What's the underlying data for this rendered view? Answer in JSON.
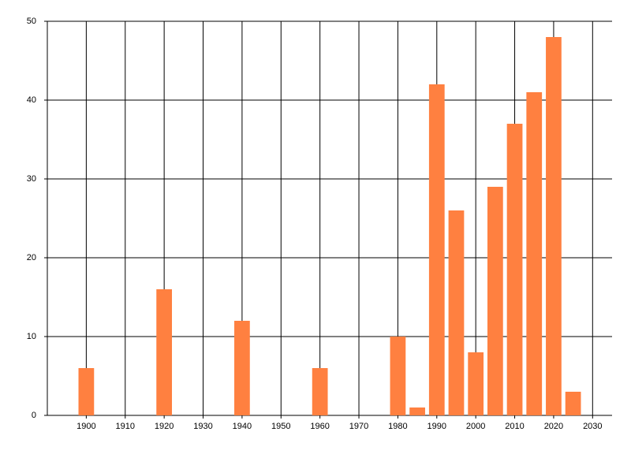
{
  "chart_data": {
    "type": "bar",
    "x": [
      1900,
      1920,
      1940,
      1960,
      1980,
      1985,
      1990,
      1995,
      2000,
      2005,
      2010,
      2015,
      2020,
      2025
    ],
    "values": [
      6,
      16,
      12,
      6,
      10,
      1,
      42,
      26,
      8,
      29,
      37,
      41,
      48,
      3
    ],
    "color": "#ff8040",
    "xlim": [
      1890,
      2035
    ],
    "xticks": [
      1900,
      1910,
      1920,
      1930,
      1940,
      1950,
      1960,
      1970,
      1980,
      1990,
      2000,
      2010,
      2020,
      2030
    ],
    "ylim": [
      0,
      50
    ],
    "yticks": [
      0,
      10,
      20,
      30,
      40,
      50
    ],
    "grid": true
  }
}
